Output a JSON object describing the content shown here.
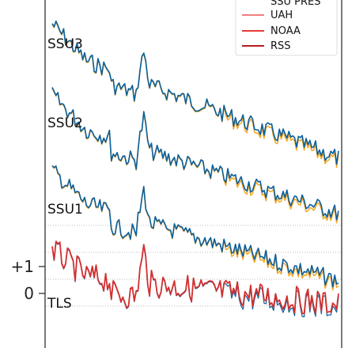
{
  "chart_data": {
    "type": "line",
    "xlabel": "",
    "ylabel": "",
    "y_ticks": [
      {
        "value": 1,
        "label": "+1"
      },
      {
        "value": 0,
        "label": "0"
      }
    ],
    "grid": "horizontal dotted baselines per panel",
    "legend": {
      "placement": "top-right",
      "items": [
        {
          "label": "SSU PRES",
          "color": "#000000"
        },
        {
          "label": "UAH",
          "color": "#f08080"
        },
        {
          "label": "NOAA",
          "color": "#e53935"
        },
        {
          "label": "RSS",
          "color": "#b71c1c"
        }
      ]
    },
    "colors": {
      "blue": "#0b5f9a",
      "orange": "#f5a623",
      "red": "#d32f2f"
    },
    "panels": [
      {
        "label": "SSU3",
        "baseline": 3.0
      },
      {
        "label": "SSU2",
        "baseline": 2.0
      },
      {
        "label": "SSU1",
        "baseline": 1.0
      },
      {
        "label": "TLS",
        "baseline": 0.0
      }
    ]
  }
}
